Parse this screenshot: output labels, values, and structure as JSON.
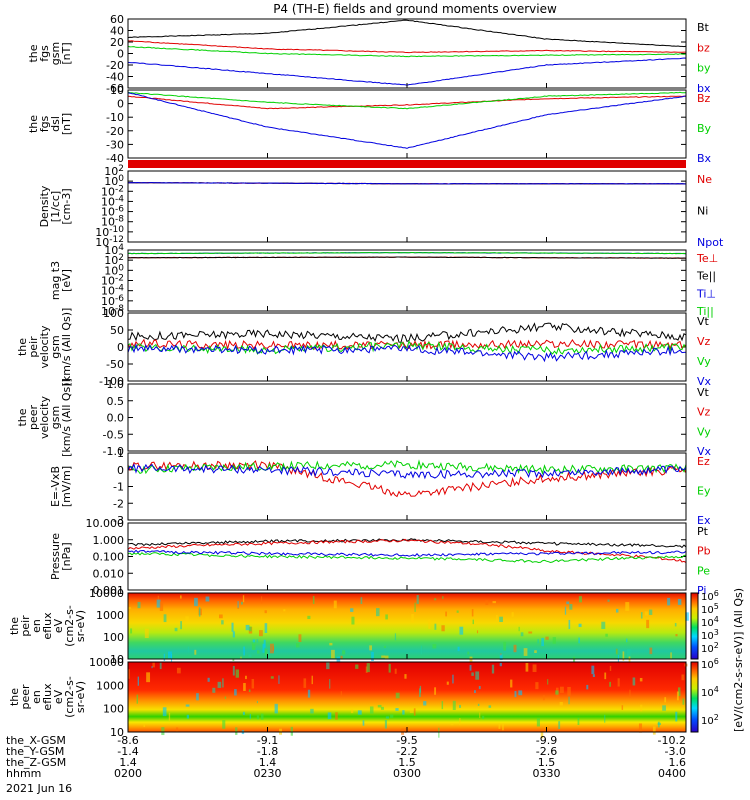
{
  "title": "P4 (TH-E) fields and ground moments overview",
  "footer": {
    "rows": [
      {
        "label": "the_X-GSM",
        "values": [
          "-8.6",
          "-9.1",
          "-9.5",
          "-9.9",
          "-10.2"
        ]
      },
      {
        "label": "the_Y-GSM",
        "values": [
          "-1.4",
          "-1.8",
          "-2.2",
          "-2.6",
          "-3.0"
        ]
      },
      {
        "label": "the_Z-GSM",
        "values": [
          "1.4",
          "1.4",
          "1.5",
          "1.5",
          "1.6"
        ]
      },
      {
        "label": "hhmm",
        "values": [
          "0200",
          "0230",
          "0300",
          "0330",
          "0400"
        ]
      }
    ],
    "date": "2021 Jun 16"
  },
  "colors": {
    "black": "#000000",
    "red": "#e00000",
    "green": "#00d000",
    "blue": "#0000e0"
  },
  "colorbar": {
    "label": "[eV/(cm2-s-sr-eV)] (All Qs)",
    "ticks_top": [
      "10^6",
      "10^5",
      "10^4",
      "10^3",
      "10^2"
    ],
    "ticks_bottom": [
      "10^6",
      "10^4",
      "10^2"
    ]
  },
  "chart_data": [
    {
      "type": "line",
      "ylabel": [
        "the",
        "fgs",
        "gsm",
        "[nT]"
      ],
      "ylim": [
        -60,
        60
      ],
      "yticks": [
        "60",
        "40",
        "20",
        "0",
        "-20",
        "-40",
        "-60"
      ],
      "x": [
        "0200",
        "0230",
        "0300",
        "0330",
        "0400"
      ],
      "series": [
        {
          "name": "Bt",
          "color": "black",
          "values": [
            28,
            35,
            58,
            25,
            12
          ]
        },
        {
          "name": "bz",
          "color": "red",
          "values": [
            22,
            8,
            2,
            5,
            2
          ]
        },
        {
          "name": "by",
          "color": "green",
          "values": [
            12,
            0,
            -5,
            -3,
            -1
          ]
        },
        {
          "name": "bx",
          "color": "blue",
          "values": [
            -15,
            -35,
            -55,
            -20,
            -8
          ]
        }
      ]
    },
    {
      "type": "line",
      "ylabel": [
        "the",
        "fgs",
        "dsl",
        "[nT]"
      ],
      "ylim": [
        -45,
        10
      ],
      "yticks": [
        "10",
        "0",
        "-10",
        "-20",
        "-30",
        "-40"
      ],
      "x": [
        "0200",
        "0230",
        "0300",
        "0330",
        "0400"
      ],
      "series": [
        {
          "name": "Bz",
          "color": "red",
          "values": [
            5,
            -5,
            -2,
            3,
            5
          ]
        },
        {
          "name": "By",
          "color": "green",
          "values": [
            8,
            0,
            -5,
            5,
            8
          ]
        },
        {
          "name": "Bx",
          "color": "blue",
          "values": [
            8,
            -20,
            -37,
            -10,
            5
          ]
        }
      ]
    },
    {
      "type": "line",
      "ylabel": [
        "Density",
        "[1/cc]",
        "[cm-3]"
      ],
      "scale": "log",
      "yticks": [
        "10^2",
        "10^0",
        "10^-2",
        "10^-4",
        "10^-6",
        "10^-8",
        "10^-10",
        "10^-12"
      ],
      "series": [
        {
          "name": "Ne",
          "color": "red",
          "values": [
            0.5,
            0.4,
            0.3,
            0.3,
            0.3
          ]
        },
        {
          "name": "Ni",
          "color": "black",
          "values": [
            0.5,
            0.4,
            0.3,
            0.3,
            0.3
          ]
        },
        {
          "name": "Npot",
          "color": "blue",
          "values": [
            0.5,
            0.4,
            0.3,
            0.3,
            0.3
          ]
        }
      ]
    },
    {
      "type": "line",
      "ylabel": [
        "mag t3",
        "[eV]"
      ],
      "scale": "log",
      "yticks": [
        "10^4",
        "10^2",
        "10^0",
        "10^-2",
        "10^-4",
        "10^-6",
        "10^-8"
      ],
      "series": [
        {
          "name": "Te⊥",
          "color": "red",
          "values": [
            300,
            350,
            400,
            300,
            250
          ]
        },
        {
          "name": "Te||",
          "color": "black",
          "values": [
            300,
            350,
            400,
            300,
            250
          ]
        },
        {
          "name": "Ti⊥",
          "color": "blue",
          "values": [
            2000,
            2500,
            3000,
            2500,
            2000
          ]
        },
        {
          "name": "Ti||",
          "color": "green",
          "values": [
            2000,
            2500,
            3000,
            2500,
            2000
          ]
        }
      ]
    },
    {
      "type": "line",
      "ylabel": [
        "the",
        "peir",
        "velocity",
        "gsm",
        "[km/s (All Qs)]"
      ],
      "ylim": [
        -100,
        100
      ],
      "yticks": [
        "100",
        "50",
        "0",
        "-50",
        "-100"
      ],
      "series": [
        {
          "name": "Vt",
          "color": "black",
          "values": [
            30,
            40,
            25,
            60,
            30
          ]
        },
        {
          "name": "Vz",
          "color": "red",
          "values": [
            10,
            5,
            5,
            10,
            5
          ]
        },
        {
          "name": "Vy",
          "color": "green",
          "values": [
            0,
            -10,
            5,
            -10,
            0
          ]
        },
        {
          "name": "Vx",
          "color": "blue",
          "values": [
            -5,
            -10,
            -5,
            -30,
            -10
          ]
        }
      ]
    },
    {
      "type": "line",
      "ylabel": [
        "the",
        "peer",
        "velocity",
        "gsm",
        "[km/s (All Qs)]"
      ],
      "ylim": [
        -1.0,
        1.0
      ],
      "yticks": [
        "1.0",
        "0.5",
        "0.0",
        "-0.5",
        "-1.0"
      ],
      "series": [
        {
          "name": "Vt",
          "color": "black",
          "values": []
        },
        {
          "name": "Vz",
          "color": "red",
          "values": []
        },
        {
          "name": "Vy",
          "color": "green",
          "values": []
        },
        {
          "name": "Vx",
          "color": "blue",
          "values": []
        }
      ]
    },
    {
      "type": "line",
      "ylabel": [
        "E=-VxB",
        "[mV/m]"
      ],
      "ylim": [
        -3,
        1
      ],
      "yticks": [
        "1",
        "0",
        "-1",
        "-2",
        "-3"
      ],
      "series": [
        {
          "name": "Ez",
          "color": "red",
          "values": [
            0.2,
            0.3,
            -1.5,
            -0.5,
            0.0
          ]
        },
        {
          "name": "Ey",
          "color": "green",
          "values": [
            0.0,
            0.2,
            0.3,
            0.0,
            0.1
          ]
        },
        {
          "name": "Ex",
          "color": "blue",
          "values": [
            0.1,
            0.0,
            -0.3,
            -0.2,
            0.0
          ]
        }
      ]
    },
    {
      "type": "line",
      "ylabel": [
        "Pressure",
        "[nPa]"
      ],
      "scale": "log",
      "yticks": [
        "10.000",
        "1.000",
        "0.100",
        "0.010",
        "0.001"
      ],
      "series": [
        {
          "name": "Pt",
          "color": "black",
          "values": [
            0.5,
            0.8,
            1.0,
            0.6,
            0.4
          ]
        },
        {
          "name": "Pb",
          "color": "red",
          "values": [
            0.3,
            0.6,
            0.9,
            0.2,
            0.05
          ]
        },
        {
          "name": "Pe",
          "color": "green",
          "values": [
            0.15,
            0.1,
            0.08,
            0.05,
            0.1
          ]
        },
        {
          "name": "Pi",
          "color": "blue",
          "values": [
            0.2,
            0.15,
            0.12,
            0.15,
            0.18
          ]
        }
      ]
    },
    {
      "type": "heatmap",
      "ylabel": [
        "the",
        "peir",
        "en",
        "eflux",
        "eV",
        "(cm2-s-",
        "sr-eV)"
      ],
      "scale": "log",
      "yticks": [
        "10000",
        "1000",
        "100",
        "10"
      ]
    },
    {
      "type": "heatmap",
      "ylabel": [
        "the",
        "peer",
        "en",
        "eflux",
        "eV",
        "(cm2-s-",
        "sr-eV)"
      ],
      "scale": "log",
      "yticks": [
        "10000",
        "1000",
        "100",
        "10"
      ]
    }
  ]
}
